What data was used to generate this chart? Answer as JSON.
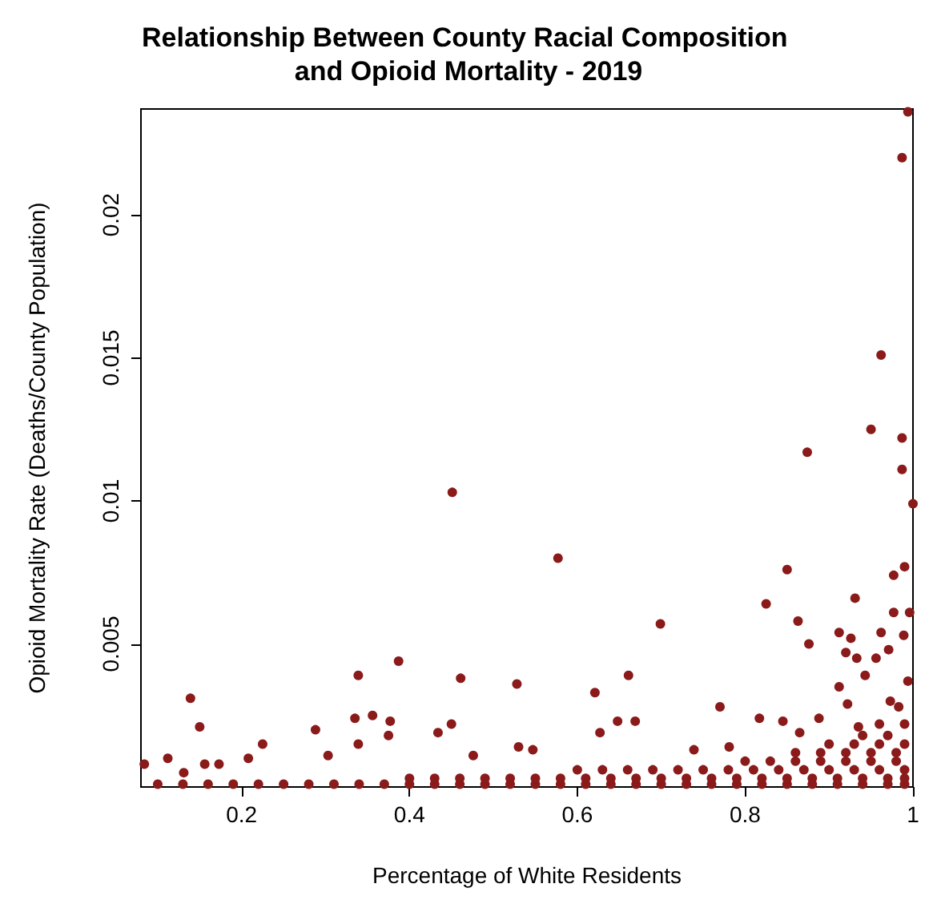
{
  "chart_data": {
    "type": "scatter",
    "title": "Relationship Between County Racial Composition and Opioid Mortality - 2019",
    "xlabel": "Percentage of White Residents",
    "ylabel": "Opioid Mortality Rate (Deaths/County Population)",
    "xlim": [
      0.08,
      1.0
    ],
    "ylim": [
      0,
      0.0237
    ],
    "xticks": [
      0.2,
      0.4,
      0.6,
      0.8,
      1.0
    ],
    "yticks": [
      0.005,
      0.01,
      0.015,
      0.02
    ],
    "grid": false,
    "marker": "circle",
    "series": [
      {
        "color": "#8b1a1a",
        "x": [
          0.994,
          0.987,
          0.962,
          0.95,
          0.987,
          0.987,
          0.874,
          1.0,
          0.451,
          0.577,
          0.85,
          0.99,
          0.977,
          0.139,
          0.15,
          0.112,
          0.225,
          0.288,
          0.339,
          0.387,
          0.335,
          0.356,
          0.377,
          0.375,
          0.339,
          0.461,
          0.528,
          0.434,
          0.45,
          0.303,
          0.156,
          0.173,
          0.208,
          0.084,
          0.131,
          0.476,
          0.53,
          0.547,
          0.699,
          0.825,
          0.931,
          0.863,
          0.876,
          0.661,
          0.621,
          0.77,
          0.648,
          0.669,
          0.627,
          0.912,
          0.926,
          0.92,
          0.933,
          0.962,
          0.977,
          0.996,
          0.971,
          0.989,
          0.956,
          0.943,
          0.994,
          0.912,
          0.817,
          0.845,
          0.888,
          0.922,
          0.973,
          0.781,
          0.739,
          0.865,
          0.935,
          0.983,
          0.1,
          0.13,
          0.16,
          0.19,
          0.22,
          0.25,
          0.28,
          0.31,
          0.34,
          0.37,
          0.4,
          0.43,
          0.46,
          0.49,
          0.52,
          0.55,
          0.58,
          0.61,
          0.64,
          0.67,
          0.7,
          0.73,
          0.76,
          0.79,
          0.82,
          0.85,
          0.88,
          0.91,
          0.94,
          0.97,
          0.99,
          0.4,
          0.43,
          0.46,
          0.49,
          0.52,
          0.55,
          0.58,
          0.61,
          0.64,
          0.67,
          0.7,
          0.73,
          0.76,
          0.79,
          0.82,
          0.85,
          0.88,
          0.91,
          0.94,
          0.97,
          0.99,
          0.6,
          0.63,
          0.66,
          0.69,
          0.72,
          0.75,
          0.78,
          0.81,
          0.84,
          0.87,
          0.9,
          0.93,
          0.96,
          0.99,
          0.8,
          0.83,
          0.86,
          0.89,
          0.92,
          0.95,
          0.98,
          0.86,
          0.89,
          0.92,
          0.95,
          0.98,
          0.9,
          0.93,
          0.96,
          0.99,
          0.94,
          0.97,
          0.96,
          0.99
        ],
        "values": [
          0.0236,
          0.022,
          0.0151,
          0.0125,
          0.0122,
          0.0111,
          0.0117,
          0.0099,
          0.0103,
          0.008,
          0.0076,
          0.0077,
          0.0074,
          0.0031,
          0.0021,
          0.001,
          0.0015,
          0.002,
          0.0039,
          0.0044,
          0.0024,
          0.0025,
          0.0023,
          0.0018,
          0.0015,
          0.0038,
          0.0036,
          0.0019,
          0.0022,
          0.0011,
          0.0008,
          0.0008,
          0.001,
          0.0008,
          0.0005,
          0.0011,
          0.0014,
          0.0013,
          0.0057,
          0.0064,
          0.0066,
          0.0058,
          0.005,
          0.0039,
          0.0033,
          0.0028,
          0.0023,
          0.0023,
          0.0019,
          0.0054,
          0.0052,
          0.0047,
          0.0045,
          0.0054,
          0.0061,
          0.0061,
          0.0048,
          0.0053,
          0.0045,
          0.0039,
          0.0037,
          0.0035,
          0.0024,
          0.0023,
          0.0024,
          0.0029,
          0.003,
          0.0014,
          0.0013,
          0.0019,
          0.0021,
          0.0028,
          0.0001,
          0.0001,
          0.0001,
          0.0001,
          0.0001,
          0.0001,
          0.0001,
          0.0001,
          0.0001,
          0.0001,
          0.0001,
          0.0001,
          0.0001,
          0.0001,
          0.0001,
          0.0001,
          0.0001,
          0.0001,
          0.0001,
          0.0001,
          0.0001,
          0.0001,
          0.0001,
          0.0001,
          0.0001,
          0.0001,
          0.0001,
          0.0001,
          0.0001,
          0.0001,
          0.0001,
          0.0003,
          0.0003,
          0.0003,
          0.0003,
          0.0003,
          0.0003,
          0.0003,
          0.0003,
          0.0003,
          0.0003,
          0.0003,
          0.0003,
          0.0003,
          0.0003,
          0.0003,
          0.0003,
          0.0003,
          0.0003,
          0.0003,
          0.0003,
          0.0003,
          0.0006,
          0.0006,
          0.0006,
          0.0006,
          0.0006,
          0.0006,
          0.0006,
          0.0006,
          0.0006,
          0.0006,
          0.0006,
          0.0006,
          0.0006,
          0.0006,
          0.0009,
          0.0009,
          0.0009,
          0.0009,
          0.0009,
          0.0009,
          0.0009,
          0.0012,
          0.0012,
          0.0012,
          0.0012,
          0.0012,
          0.0015,
          0.0015,
          0.0015,
          0.0015,
          0.0018,
          0.0018,
          0.0022,
          0.0022
        ]
      }
    ]
  }
}
